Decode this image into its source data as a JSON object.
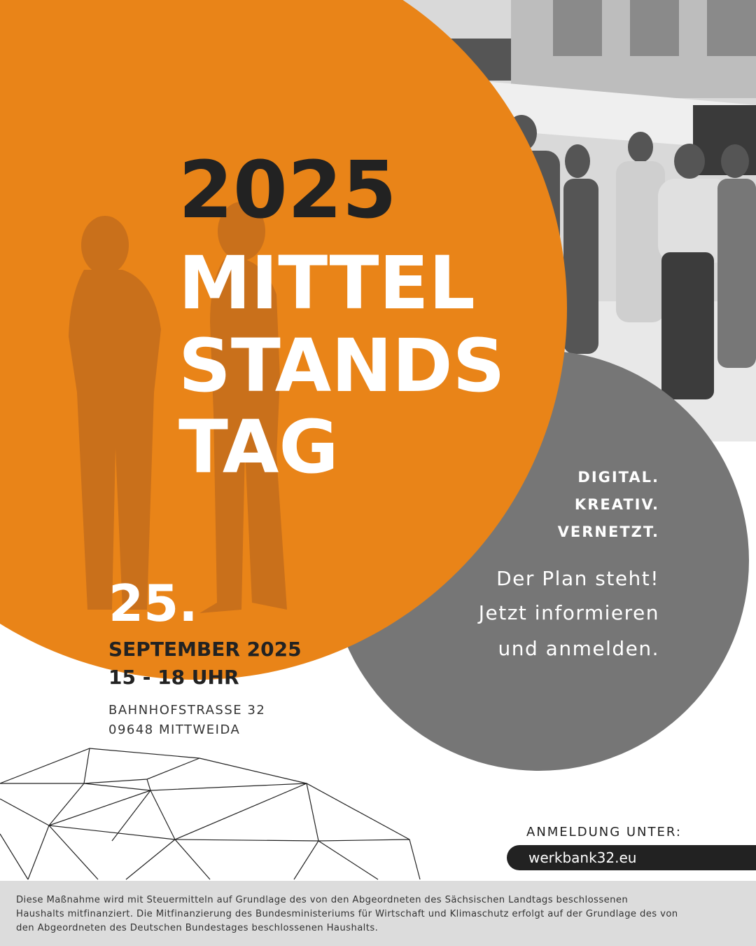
{
  "poster": {
    "year": "2025",
    "title_lines": [
      "MITTEL",
      "STANDS",
      "TAG"
    ],
    "tagline": [
      "DIGITAL.",
      "KREATIV.",
      "VERNETZT."
    ],
    "cta_lines": [
      "Der Plan steht!",
      "Jetzt informieren",
      "und anmelden."
    ],
    "day": "25.",
    "month": "SEPTEMBER 2025",
    "time": "15 - 18 UHR",
    "address": [
      "BAHNHOFSTRASSE 32",
      "09648 MITTWEIDA"
    ],
    "registration_label": "ANMELDUNG UNTER:",
    "url": "werkbank32.eu",
    "footer_lines": [
      "Diese Maßnahme wird mit Steuermitteln auf Grundlage des von den Abgeordneten des Sächsischen Landtags beschlossenen",
      "Haushalts mitfinanziert. Die Mitfinanzierung des Bundesministeriums für Wirtschaft und Klimaschutz erfolgt auf der Grundlage des von",
      "den Abgeordneten des Deutschen Bundestages beschlossenen Haushalts."
    ]
  }
}
